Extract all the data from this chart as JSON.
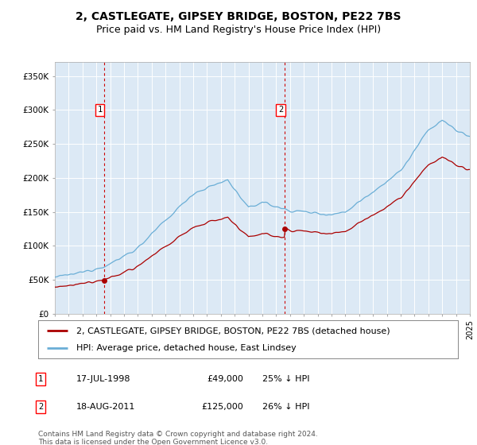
{
  "title": "2, CASTLEGATE, GIPSEY BRIDGE, BOSTON, PE22 7BS",
  "subtitle": "Price paid vs. HM Land Registry's House Price Index (HPI)",
  "background_color": "#dce9f5",
  "hpi_color": "#6aaed6",
  "price_color": "#aa0000",
  "vline_color": "#cc0000",
  "ylim": [
    0,
    370000
  ],
  "yticks": [
    0,
    50000,
    100000,
    150000,
    200000,
    250000,
    300000,
    350000
  ],
  "ytick_labels": [
    "£0",
    "£50K",
    "£100K",
    "£150K",
    "£200K",
    "£250K",
    "£300K",
    "£350K"
  ],
  "xstart": 1995,
  "xend": 2025,
  "legend_label_price": "2, CASTLEGATE, GIPSEY BRIDGE, BOSTON, PE22 7BS (detached house)",
  "legend_label_hpi": "HPI: Average price, detached house, East Lindsey",
  "sale1_date": "17-JUL-1998",
  "sale1_price": 49000,
  "sale1_pct": "25%",
  "sale1_year": 1998.54,
  "sale2_date": "18-AUG-2011",
  "sale2_price": 125000,
  "sale2_pct": "26%",
  "sale2_year": 2011.63,
  "footer": "Contains HM Land Registry data © Crown copyright and database right 2024.\nThis data is licensed under the Open Government Licence v3.0.",
  "title_fontsize": 10,
  "subtitle_fontsize": 9,
  "tick_fontsize": 7.5,
  "legend_fontsize": 8,
  "footer_fontsize": 6.5
}
